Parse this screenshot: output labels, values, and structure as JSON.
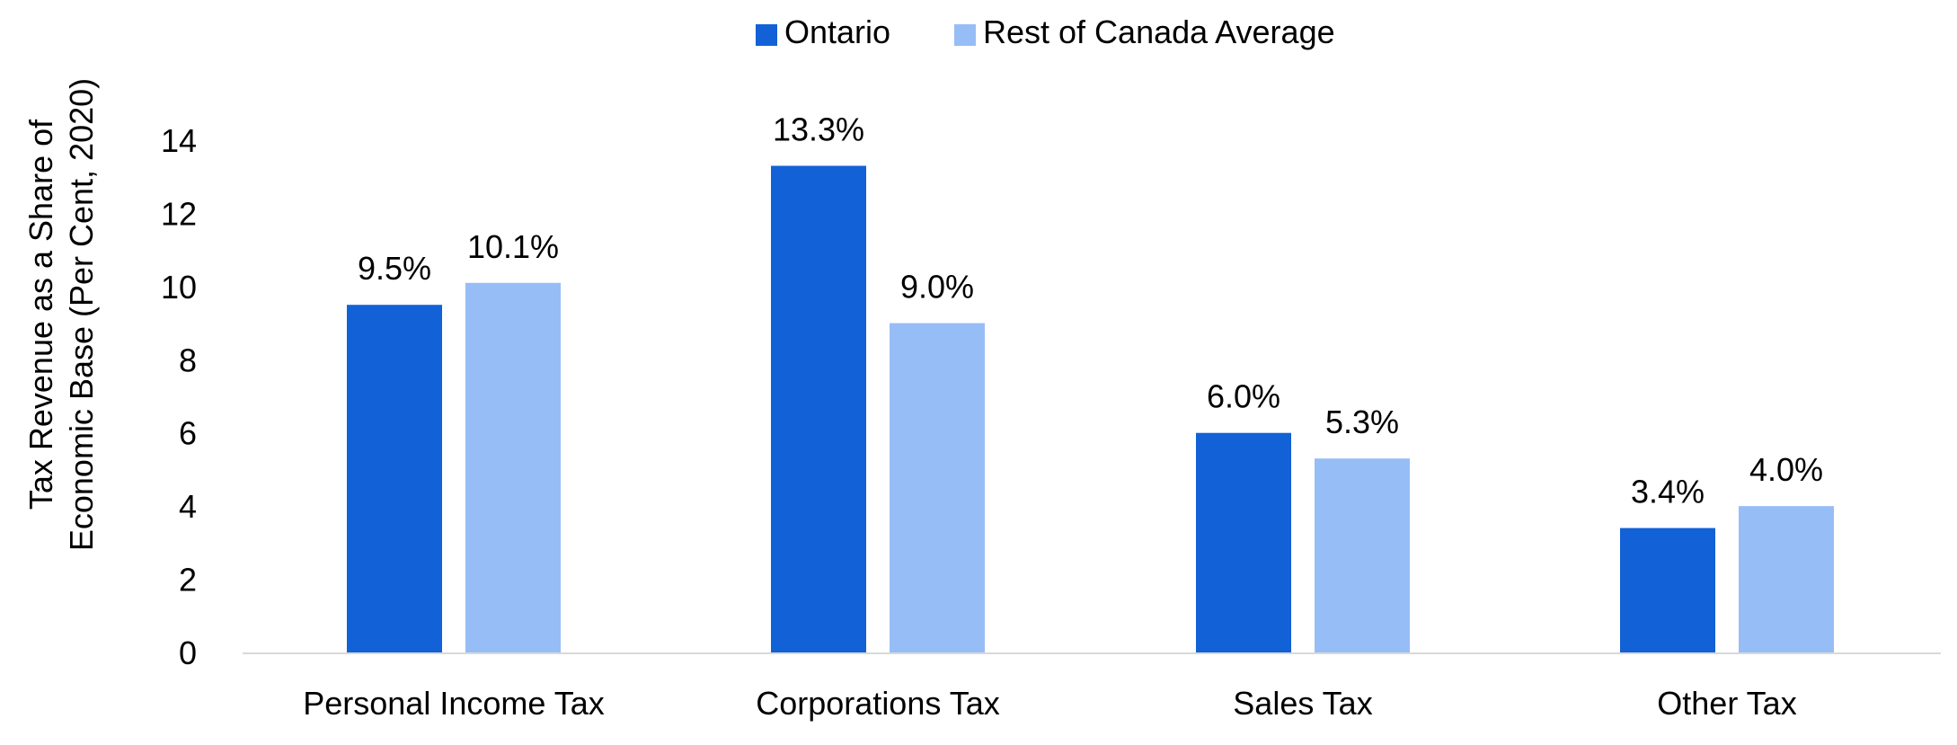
{
  "chart_data": {
    "type": "bar",
    "title": "",
    "categories": [
      "Personal Income Tax",
      "Corporations Tax",
      "Sales Tax",
      "Other Tax"
    ],
    "series": [
      {
        "name": "Ontario",
        "values": [
          9.5,
          13.3,
          6.0,
          3.4
        ],
        "labels": [
          "9.5%",
          "13.3%",
          "6.0%",
          "3.4%"
        ],
        "color": "#1261D6"
      },
      {
        "name": "Rest of Canada Average",
        "values": [
          10.1,
          9.0,
          5.3,
          4.0
        ],
        "labels": [
          "10.1%",
          "9.0%",
          "5.3%",
          "4.0%"
        ],
        "color": "#97BDF6"
      }
    ],
    "xlabel": "",
    "ylabel_lines": [
      "Tax Revenue as a Share of",
      "Economic Base (Per Cent, 2020)"
    ],
    "ylim": [
      0,
      14
    ],
    "yticks": [
      0,
      2,
      4,
      6,
      8,
      10,
      12,
      14
    ],
    "grid": false,
    "legend_position": "top-center",
    "axis_color": "#D9D9D9"
  }
}
